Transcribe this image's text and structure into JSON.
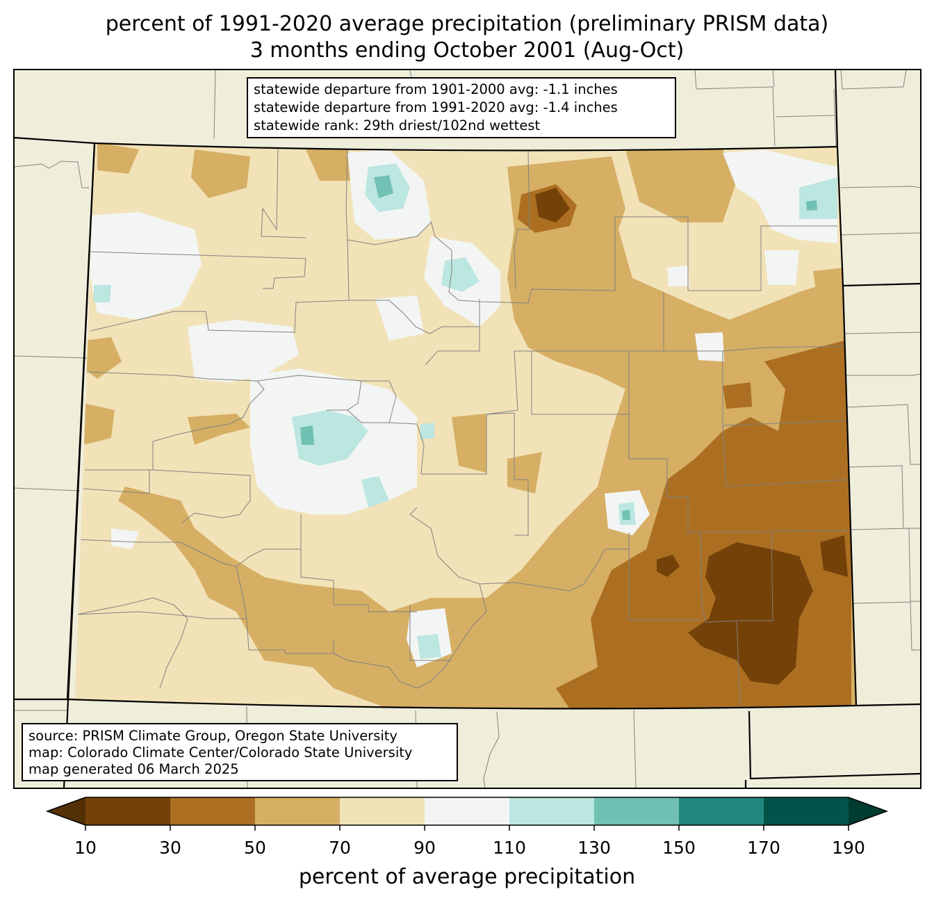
{
  "title": {
    "line1": "percent of 1991-2020 average precipitation (preliminary PRISM data)",
    "line2": "3 months ending October 2001 (Aug-Oct)"
  },
  "stats": {
    "line1": "statewide departure from 1901-2000 avg: -1.1 inches",
    "line2": "statewide departure from 1991-2020 avg: -1.4 inches",
    "line3": "statewide rank: 29th driest/102nd wettest"
  },
  "source": {
    "line1": "source: PRISM Climate Group, Oregon State University",
    "line2": "map: Colorado Climate Center/Colorado State University",
    "line3": "map generated 06 March 2025"
  },
  "colorbar": {
    "label": "percent of average precipitation",
    "ticks": [
      "10",
      "30",
      "50",
      "70",
      "90",
      "110",
      "130",
      "150",
      "170",
      "190"
    ],
    "under_color": "#543005",
    "over_color": "#003c30",
    "bins": [
      {
        "min": 10,
        "max": 30,
        "color": "#744208"
      },
      {
        "min": 30,
        "max": 50,
        "color": "#ac6f22"
      },
      {
        "min": 50,
        "max": 70,
        "color": "#d6af65"
      },
      {
        "min": 70,
        "max": 90,
        "color": "#f2e2b8"
      },
      {
        "min": 90,
        "max": 110,
        "color": "#f3f5f4"
      },
      {
        "min": 110,
        "max": 130,
        "color": "#bce6e0"
      },
      {
        "min": 130,
        "max": 150,
        "color": "#70c1b3"
      },
      {
        "min": 150,
        "max": 170,
        "color": "#21877f"
      },
      {
        "min": 170,
        "max": 190,
        "color": "#01544a"
      }
    ]
  },
  "colors": {
    "land_outside": "#efeedb",
    "county_line": "#808080",
    "state_line": "#000000"
  }
}
